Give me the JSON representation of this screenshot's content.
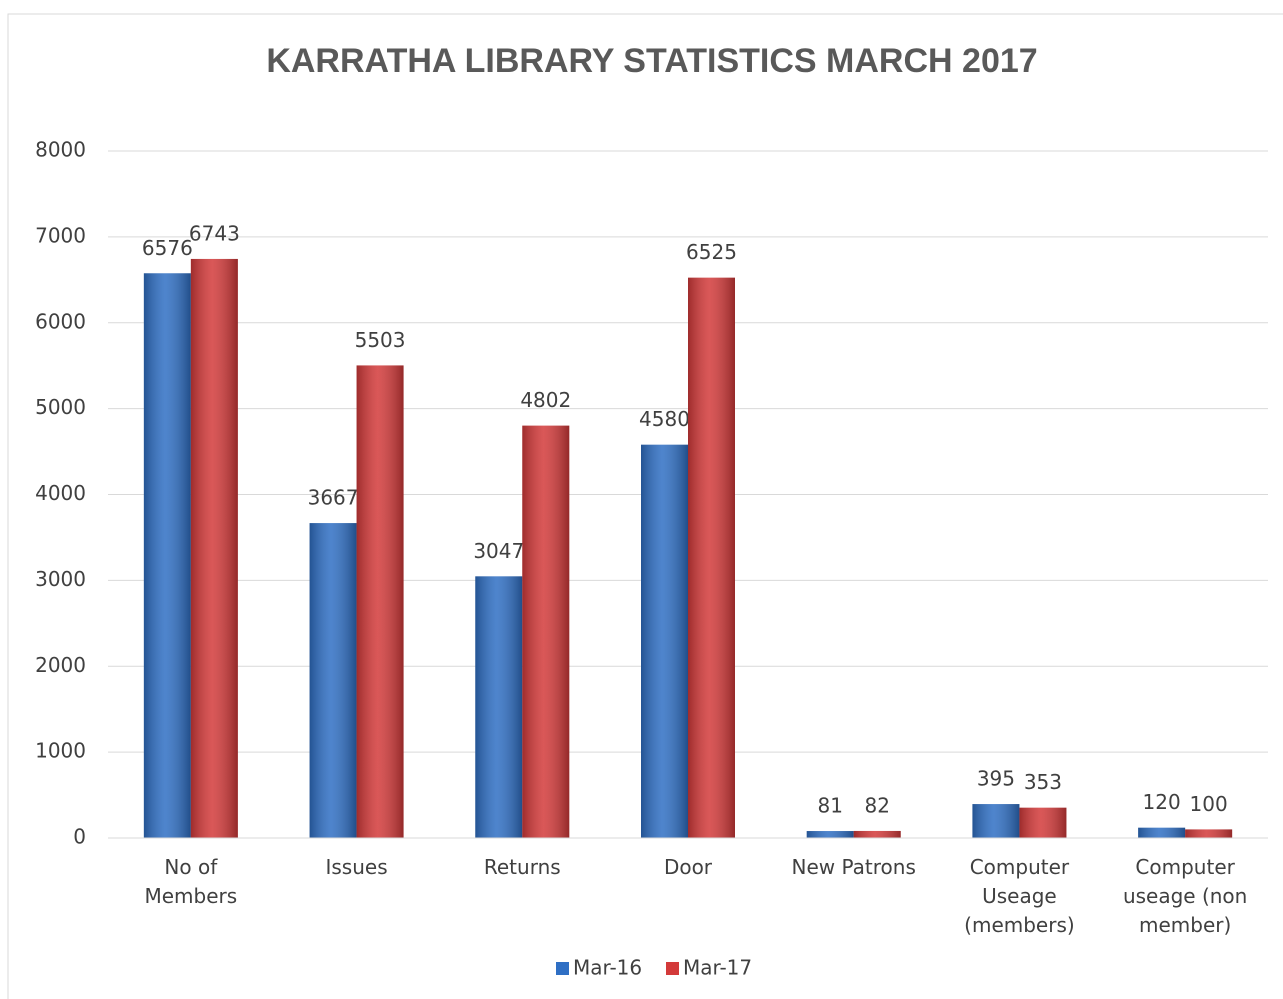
{
  "chart_data": {
    "type": "bar",
    "title": "KARRATHA LIBRARY STATISTICS MARCH 2017",
    "categories": [
      "No of Members",
      "Issues",
      "Returns",
      "Door",
      "New Patrons",
      "Computer Useage (members)",
      "Computer useage (non member)"
    ],
    "series": [
      {
        "name": "Mar-16",
        "color": "#2f6fc4",
        "values": [
          6576,
          3667,
          3047,
          4580,
          81,
          395,
          120
        ]
      },
      {
        "name": "Mar-17",
        "color": "#d33a3a",
        "values": [
          6743,
          5503,
          4802,
          6525,
          82,
          353,
          100
        ]
      }
    ],
    "ylim": [
      0,
      8000
    ],
    "yticks": [
      0,
      1000,
      2000,
      3000,
      4000,
      5000,
      6000,
      7000,
      8000
    ],
    "grid": true,
    "legend": "bottom"
  }
}
